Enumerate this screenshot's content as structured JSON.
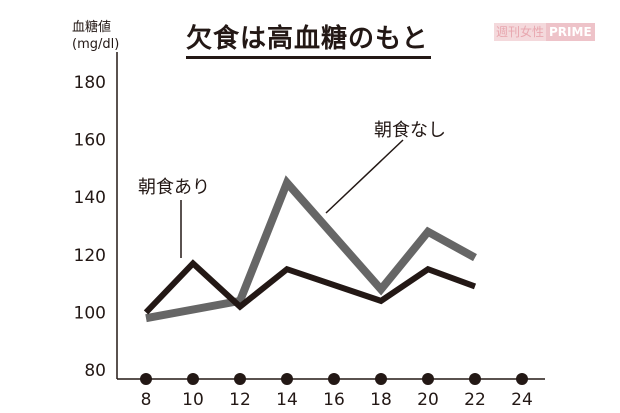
{
  "header": {
    "title": "欠食は高血糖のもと",
    "brand_a": "週刊女性",
    "brand_b": "PRIME"
  },
  "axis": {
    "ylabel_line1": "血糖値",
    "ylabel_line2": "(mg/dl)"
  },
  "labels": {
    "with_breakfast": "朝食あり",
    "without_breakfast": "朝食なし"
  },
  "colors": {
    "with_breakfast": "#231815",
    "without_breakfast": "#666666"
  },
  "chart_data": {
    "type": "line",
    "title": "欠食は高血糖のもと",
    "xlabel": "",
    "ylabel": "血糖値 (mg/dl)",
    "x_ticks": [
      8,
      10,
      12,
      14,
      16,
      18,
      20,
      22,
      24
    ],
    "y_ticks": [
      80,
      100,
      120,
      140,
      160,
      180
    ],
    "ylim": [
      80,
      180
    ],
    "xlim": [
      8,
      24
    ],
    "grid": false,
    "series": [
      {
        "name": "朝食あり",
        "x": [
          8,
          10,
          12,
          14,
          18,
          20,
          22
        ],
        "values": [
          100,
          117,
          102,
          115,
          104,
          115,
          109
        ]
      },
      {
        "name": "朝食なし",
        "x": [
          8,
          12,
          14,
          18,
          20,
          22
        ],
        "values": [
          98,
          104,
          145,
          108,
          128,
          119
        ]
      }
    ]
  }
}
